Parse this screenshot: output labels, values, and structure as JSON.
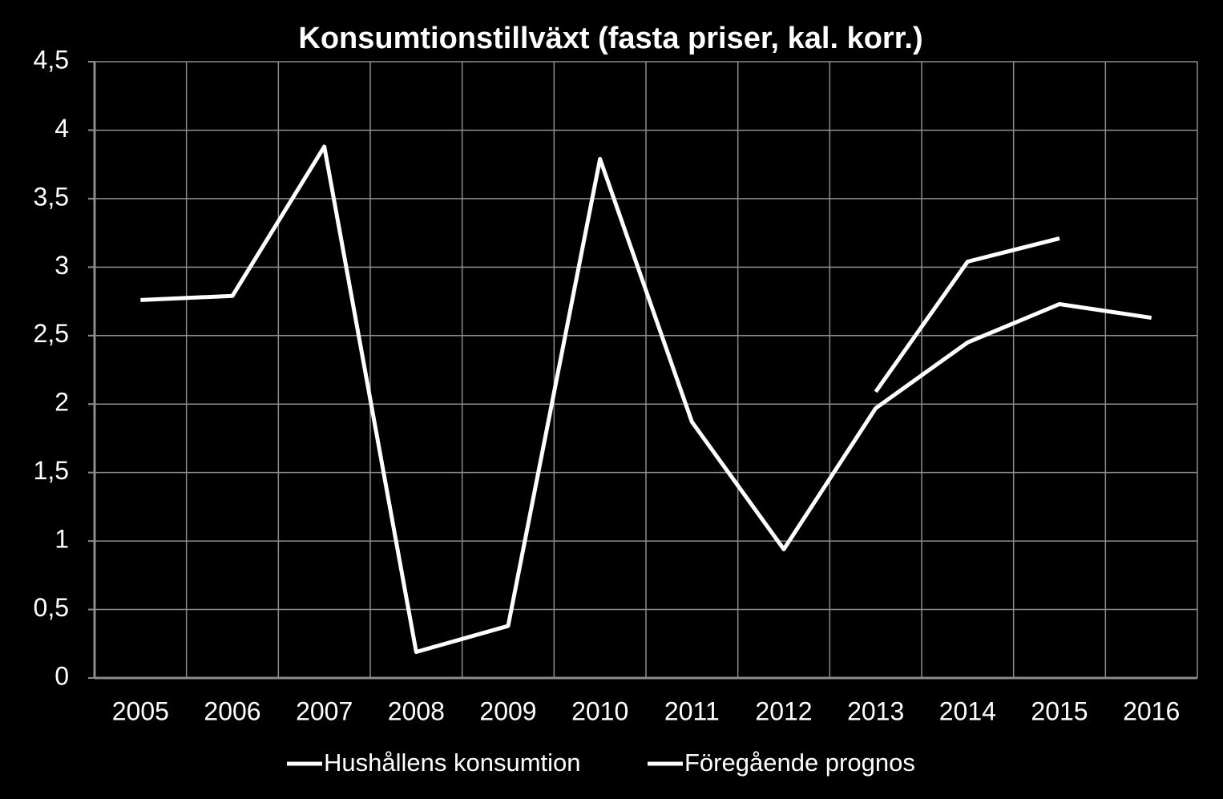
{
  "chart_data": {
    "type": "line",
    "title": "Konsumtionstillväxt (fasta priser, kal. korr.)",
    "categories": [
      "2005",
      "2006",
      "2007",
      "2008",
      "2009",
      "2010",
      "2011",
      "2012",
      "2013",
      "2014",
      "2015",
      "2016"
    ],
    "series": [
      {
        "name": "Hushållens konsumtion",
        "color": "#ffffff",
        "values": [
          2.76,
          2.79,
          3.88,
          0.19,
          0.38,
          3.79,
          1.87,
          0.94,
          1.97,
          2.45,
          2.73,
          2.63
        ]
      },
      {
        "name": "Föregående prognos",
        "color": "#ffffff",
        "values": [
          null,
          null,
          null,
          null,
          null,
          null,
          null,
          null,
          2.09,
          3.04,
          3.21,
          null
        ]
      }
    ],
    "ylim": [
      0,
      4.5
    ],
    "yticks": [
      0,
      {
        "value": 0.5,
        "label": "0,5"
      },
      1,
      {
        "value": 1.5,
        "label": "1,5"
      },
      2,
      {
        "value": 2.5,
        "label": "2,5"
      },
      3,
      {
        "value": 3.5,
        "label": "3,5"
      },
      4,
      {
        "value": 4.5,
        "label": "4,5"
      }
    ],
    "grid": true,
    "legend": "bottom"
  }
}
